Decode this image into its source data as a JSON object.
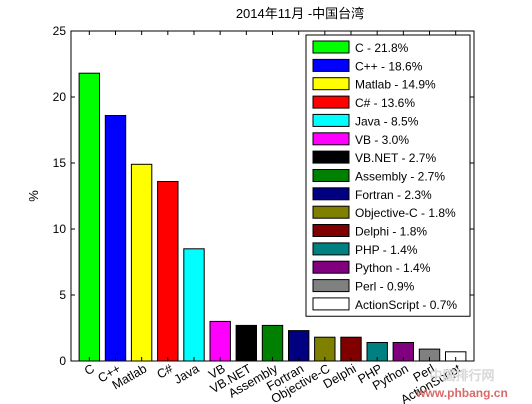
{
  "chart_data": {
    "type": "bar",
    "title": "2014年11月 -中国台湾",
    "xlabel": "",
    "ylabel": "%",
    "ylim": [
      0,
      25
    ],
    "yticks": [
      "0",
      "5",
      "10",
      "15",
      "20",
      "25"
    ],
    "categories": [
      "C",
      "C++",
      "Matlab",
      "C#",
      "Java",
      "VB",
      "VB.NET",
      "Assembly",
      "Fortran",
      "Objective-C",
      "Delphi",
      "PHP",
      "Python",
      "Perl",
      "ActionScript"
    ],
    "values": [
      21.8,
      18.6,
      14.9,
      13.6,
      8.5,
      3.0,
      2.7,
      2.7,
      2.3,
      1.8,
      1.8,
      1.4,
      1.4,
      0.9,
      0.7
    ],
    "colors": [
      "#00ff00",
      "#0000ff",
      "#ffff00",
      "#ff0000",
      "#00ffff",
      "#ff00ff",
      "#000000",
      "#008000",
      "#000080",
      "#808000",
      "#800000",
      "#008080",
      "#800080",
      "#808080",
      "#ffffff"
    ],
    "legend_labels": [
      "C - 21.8%",
      "C++ - 18.6%",
      "Matlab - 14.9%",
      "C# - 13.6%",
      "Java - 8.5%",
      "VB - 3.0%",
      "VB.NET - 2.7%",
      "Assembly - 2.7%",
      "Fortran - 2.3%",
      "Objective-C - 1.8%",
      "Delphi - 1.8%",
      "PHP - 1.4%",
      "Python - 1.4%",
      "Perl - 0.9%",
      "ActionScript - 0.7%"
    ],
    "legend_position": "top-right",
    "grid": false
  },
  "watermark": {
    "site_cn": "中国排行网",
    "site_url": "www.phbang.cn"
  }
}
